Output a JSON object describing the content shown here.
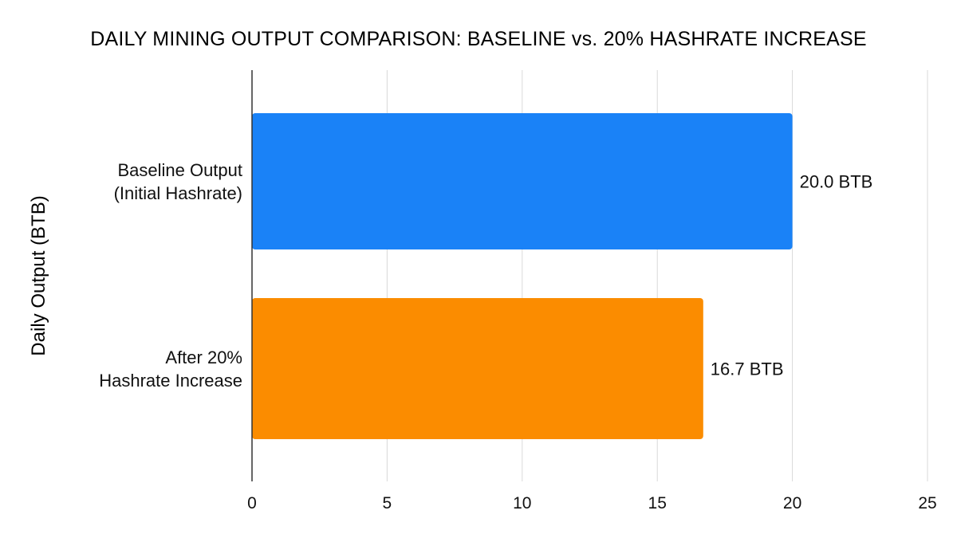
{
  "chart_data": {
    "type": "bar",
    "orientation": "horizontal",
    "title": "DAILY MINING OUTPUT COMPARISON: BASELINE vs. 20% HASHRATE INCREASE",
    "ylabel": "Daily Output (BTB)",
    "xlabel": "",
    "categories": [
      [
        "Baseline Output",
        "(Initial Hashrate)"
      ],
      [
        "After 20%",
        "Hashrate Increase"
      ]
    ],
    "values": [
      20.0,
      16.7
    ],
    "data_labels": [
      "20.0 BTB",
      "16.7 BTB"
    ],
    "colors": [
      "#1a82f7",
      "#fb8c00"
    ],
    "xlim": [
      0,
      25
    ],
    "xticks": [
      0,
      5,
      10,
      15,
      20,
      25
    ],
    "grid": "vertical",
    "legend": "none"
  }
}
